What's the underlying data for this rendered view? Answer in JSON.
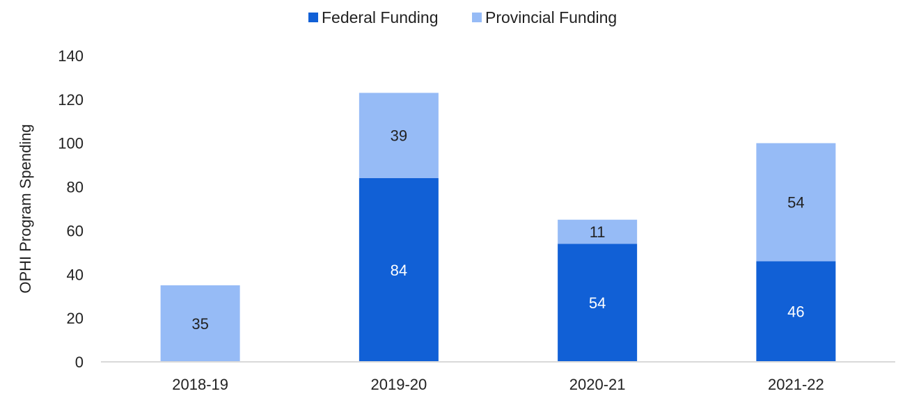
{
  "chart_data": {
    "type": "bar",
    "stacked": true,
    "title": "",
    "xlabel": "",
    "ylabel": "OPHI Program Spending",
    "categories": [
      "2018-19",
      "2019-20",
      "2020-21",
      "2021-22"
    ],
    "series": [
      {
        "name": "Federal Funding",
        "color": "#1160d6",
        "label_color": "#ffffff",
        "values": [
          0,
          84,
          54,
          46
        ]
      },
      {
        "name": "Provincial Funding",
        "color": "#96bbf6",
        "label_color": "#222222",
        "values": [
          35,
          39,
          11,
          54
        ]
      }
    ],
    "data_labels": [
      [
        "",
        "84",
        "54",
        "46"
      ],
      [
        "35",
        "39",
        "11",
        "54"
      ]
    ],
    "ylim": [
      0,
      140
    ],
    "yticks": [
      0,
      20,
      40,
      60,
      80,
      100,
      120,
      140
    ],
    "grid": false,
    "legend_position": "top-center"
  }
}
